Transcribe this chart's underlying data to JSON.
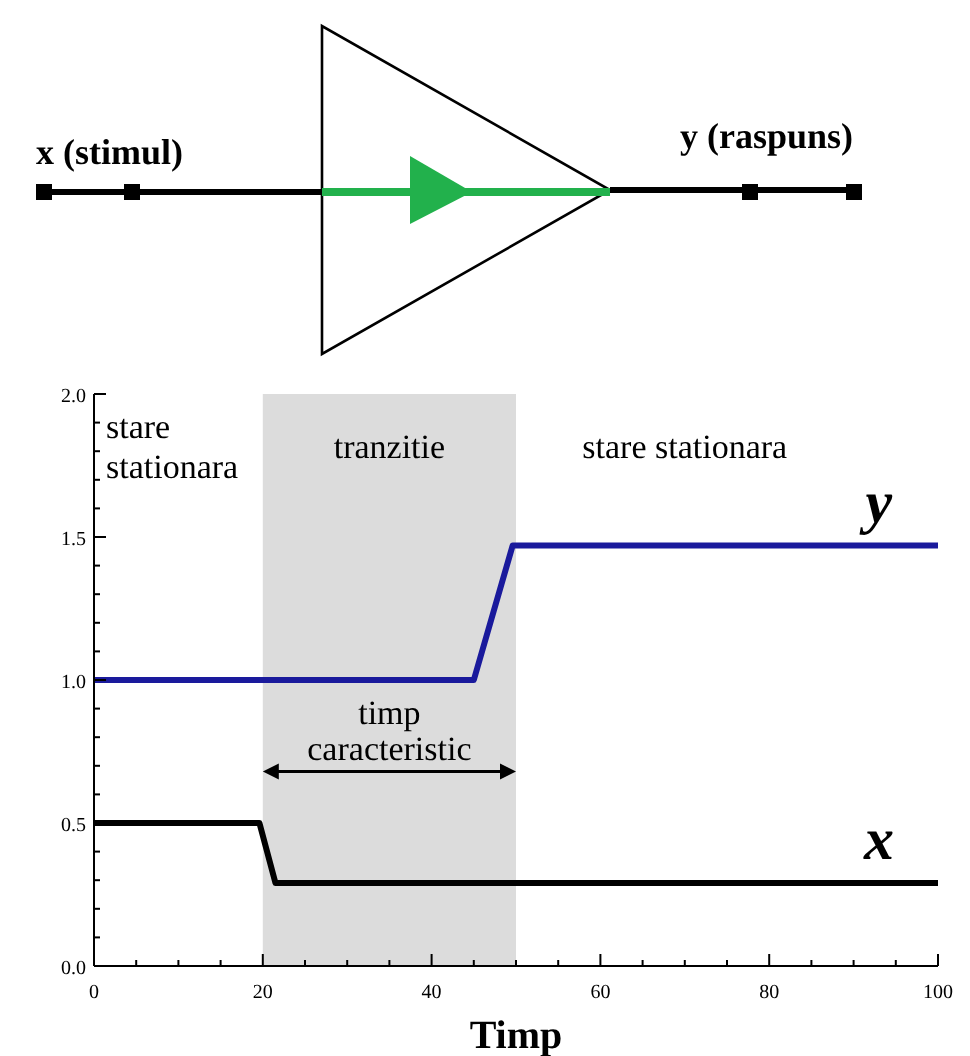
{
  "chart_data": {
    "type": "line",
    "xlabel": "Timp",
    "xlim": [
      0,
      100
    ],
    "xticks": [
      0,
      {
        "value": 5,
        "label": null
      },
      {
        "value": 10,
        "label": null
      },
      {
        "value": 15,
        "label": null
      },
      20,
      {
        "value": 25,
        "label": null
      },
      {
        "value": 30,
        "label": null
      },
      {
        "value": 35,
        "label": null
      },
      40,
      {
        "value": 45,
        "label": null
      },
      {
        "value": 50,
        "label": null
      },
      {
        "value": 55,
        "label": null
      },
      60,
      {
        "value": 65,
        "label": null
      },
      {
        "value": 70,
        "label": null
      },
      {
        "value": 75,
        "label": null
      },
      80,
      {
        "value": 85,
        "label": null
      },
      {
        "value": 90,
        "label": null
      },
      {
        "value": 95,
        "label": null
      },
      100
    ],
    "ylim": [
      0,
      2
    ],
    "yticks": [
      {
        "value": 0,
        "label": "0.0"
      },
      {
        "value": 0.1,
        "label": null
      },
      {
        "value": 0.2,
        "label": null
      },
      {
        "value": 0.3,
        "label": null
      },
      {
        "value": 0.4,
        "label": null
      },
      {
        "value": 0.5,
        "label": "0.5"
      },
      {
        "value": 0.6,
        "label": null
      },
      {
        "value": 0.7,
        "label": null
      },
      {
        "value": 0.8,
        "label": null
      },
      {
        "value": 0.9,
        "label": null
      },
      {
        "value": 1,
        "label": "1.0"
      },
      {
        "value": 1.1,
        "label": null
      },
      {
        "value": 1.2,
        "label": null
      },
      {
        "value": 1.3,
        "label": null
      },
      {
        "value": 1.4,
        "label": null
      },
      {
        "value": 1.5,
        "label": "1.5"
      },
      {
        "value": 1.6,
        "label": null
      },
      {
        "value": 1.7,
        "label": null
      },
      {
        "value": 1.8,
        "label": null
      },
      {
        "value": 1.9,
        "label": null
      },
      {
        "value": 2,
        "label": "2.0"
      }
    ],
    "series": [
      {
        "name": "y",
        "color": "#1a1a9c",
        "x": [
          0,
          45,
          49.6,
          100
        ],
        "values": [
          1,
          1,
          1.47,
          1.47
        ]
      },
      {
        "name": "x",
        "color": "#000000",
        "x": [
          0,
          19.6,
          21.5,
          100
        ],
        "values": [
          0.5,
          0.5,
          0.29,
          0.29
        ]
      }
    ],
    "bands": [
      {
        "axis": "x",
        "from": 20,
        "to": 50,
        "label": "tranzitie",
        "color": "#dcdcdc"
      }
    ],
    "annotations": [
      "stare stationara",
      "stare stationara",
      "timp caracteristic",
      "x (stimul)",
      "y (raspuns)"
    ],
    "marker": "none",
    "line_style": "solid"
  }
}
